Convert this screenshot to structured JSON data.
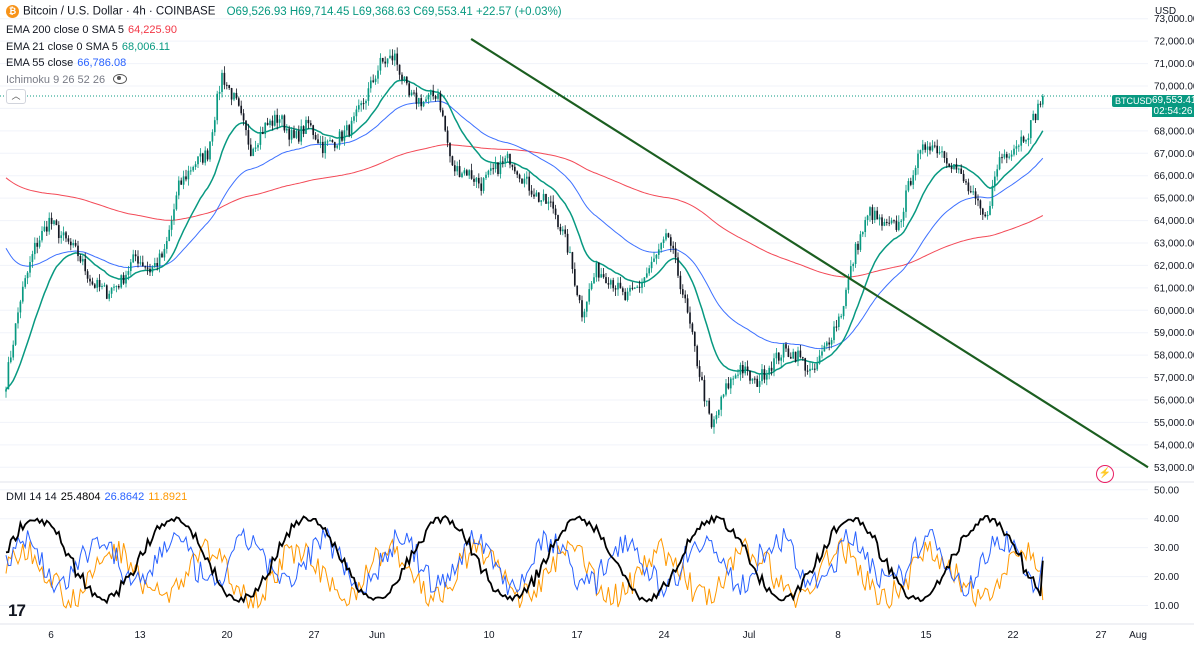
{
  "header": {
    "title": "Bitcoin / U.S. Dollar · 4h · COINBASE",
    "ohlc": "O69,526.93 H69,714.45 L69,368.63 C69,553.41 +22.57 (+0.03%)"
  },
  "indicators": [
    {
      "name": "EMA 200 close 0 SMA 5",
      "value": "64,225.90",
      "color": "#f23645"
    },
    {
      "name": "EMA 21 close 0 SMA 5",
      "value": "68,006.11",
      "color": "#089981"
    },
    {
      "name": "EMA 55 close",
      "value": "66,786.08",
      "color": "#2962ff"
    },
    {
      "name": "Ichimoku 9 26 52 26",
      "value": "",
      "color": "#787b86"
    }
  ],
  "dmi": {
    "name": "DMI 14 14",
    "adx": "25.4804",
    "plus_di": "26.8642",
    "minus_di": "11.8921"
  },
  "currency": "USD",
  "price_tag": {
    "symbol": "BTCUSD",
    "price": "69,553.41",
    "countdown": "02:54:26"
  },
  "colors": {
    "up": "#089981",
    "down": "#131722",
    "ema200": "#f23645",
    "ema21": "#089981",
    "ema55": "#2962ff",
    "trendline": "#1b5e20",
    "adx": "#000000",
    "plus_di": "#2962ff",
    "minus_di": "#ff9800"
  },
  "chart_data": [
    {
      "type": "candlestick",
      "title": "Bitcoin / U.S. Dollar · 4h · COINBASE",
      "x_ticks": [
        "6",
        "13",
        "20",
        "27",
        "Jun",
        "10",
        "17",
        "24",
        "Jul",
        "8",
        "15",
        "22",
        "27",
        "Aug"
      ],
      "y_ticks": [
        "53,000.00",
        "54,000.00",
        "55,000.00",
        "56,000.00",
        "57,000.00",
        "58,000.00",
        "59,000.00",
        "60,000.00",
        "61,000.00",
        "62,000.00",
        "63,000.00",
        "64,000.00",
        "65,000.00",
        "66,000.00",
        "67,000.00",
        "68,000.00",
        "69,000.00",
        "70,000.00",
        "71,000.00",
        "72,000.00",
        "73,000.00"
      ],
      "ylim": [
        52700,
        73300
      ],
      "close_anchors_by_day": [
        [
          0,
          56800
        ],
        [
          1,
          60500
        ],
        [
          2,
          62800
        ],
        [
          3,
          64000
        ],
        [
          4,
          63200
        ],
        [
          5,
          62500
        ],
        [
          6,
          61200
        ],
        [
          7,
          60800
        ],
        [
          8,
          61300
        ],
        [
          9,
          62400
        ],
        [
          10,
          61800
        ],
        [
          11,
          62500
        ],
        [
          12,
          65500
        ],
        [
          13,
          66500
        ],
        [
          14,
          67000
        ],
        [
          15,
          70500
        ],
        [
          16,
          69200
        ],
        [
          17,
          67200
        ],
        [
          18,
          68200
        ],
        [
          19,
          68600
        ],
        [
          20,
          67600
        ],
        [
          21,
          68300
        ],
        [
          22,
          67300
        ],
        [
          23,
          67600
        ],
        [
          24,
          68200
        ],
        [
          25,
          69500
        ],
        [
          26,
          71000
        ],
        [
          27,
          71300
        ],
        [
          28,
          69500
        ],
        [
          29,
          69300
        ],
        [
          30,
          69700
        ],
        [
          31,
          66300
        ],
        [
          32,
          66200
        ],
        [
          33,
          65600
        ],
        [
          34,
          66300
        ],
        [
          35,
          66800
        ],
        [
          36,
          65800
        ],
        [
          37,
          65000
        ],
        [
          38,
          64600
        ],
        [
          39,
          62800
        ],
        [
          40,
          59900
        ],
        [
          41,
          61800
        ],
        [
          42,
          61400
        ],
        [
          43,
          60500
        ],
        [
          44,
          61100
        ],
        [
          45,
          62200
        ],
        [
          46,
          63300
        ],
        [
          47,
          60800
        ],
        [
          48,
          57700
        ],
        [
          49,
          54700
        ],
        [
          50,
          56500
        ],
        [
          51,
          57500
        ],
        [
          52,
          56700
        ],
        [
          53,
          57500
        ],
        [
          54,
          58200
        ],
        [
          55,
          58000
        ],
        [
          56,
          57100
        ],
        [
          57,
          58500
        ],
        [
          58,
          59900
        ],
        [
          59,
          62700
        ],
        [
          60,
          64400
        ],
        [
          61,
          63700
        ],
        [
          62,
          63800
        ],
        [
          63,
          66300
        ],
        [
          64,
          67500
        ],
        [
          65,
          67100
        ],
        [
          66,
          66300
        ],
        [
          67,
          65200
        ],
        [
          68,
          64000
        ],
        [
          69,
          66800
        ],
        [
          70,
          67300
        ],
        [
          71,
          68000
        ],
        [
          72,
          69553
        ]
      ],
      "trendline": [
        [
          "Jun 7",
          72100
        ],
        [
          "Jul 31",
          53000
        ]
      ],
      "ema200_end": 64225.9,
      "ema21_end": 68006.11,
      "ema55_end": 66786.08,
      "last_close": 69553.41
    },
    {
      "type": "line",
      "title": "DMI 14 14",
      "y_ticks": [
        "10.00",
        "20.00",
        "30.00",
        "40.00",
        "50.00"
      ],
      "ylim": [
        5,
        52
      ],
      "series": [
        {
          "name": "ADX",
          "last": 25.4804
        },
        {
          "name": "+DI",
          "last": 26.8642
        },
        {
          "name": "-DI",
          "last": 11.8921
        }
      ]
    }
  ]
}
